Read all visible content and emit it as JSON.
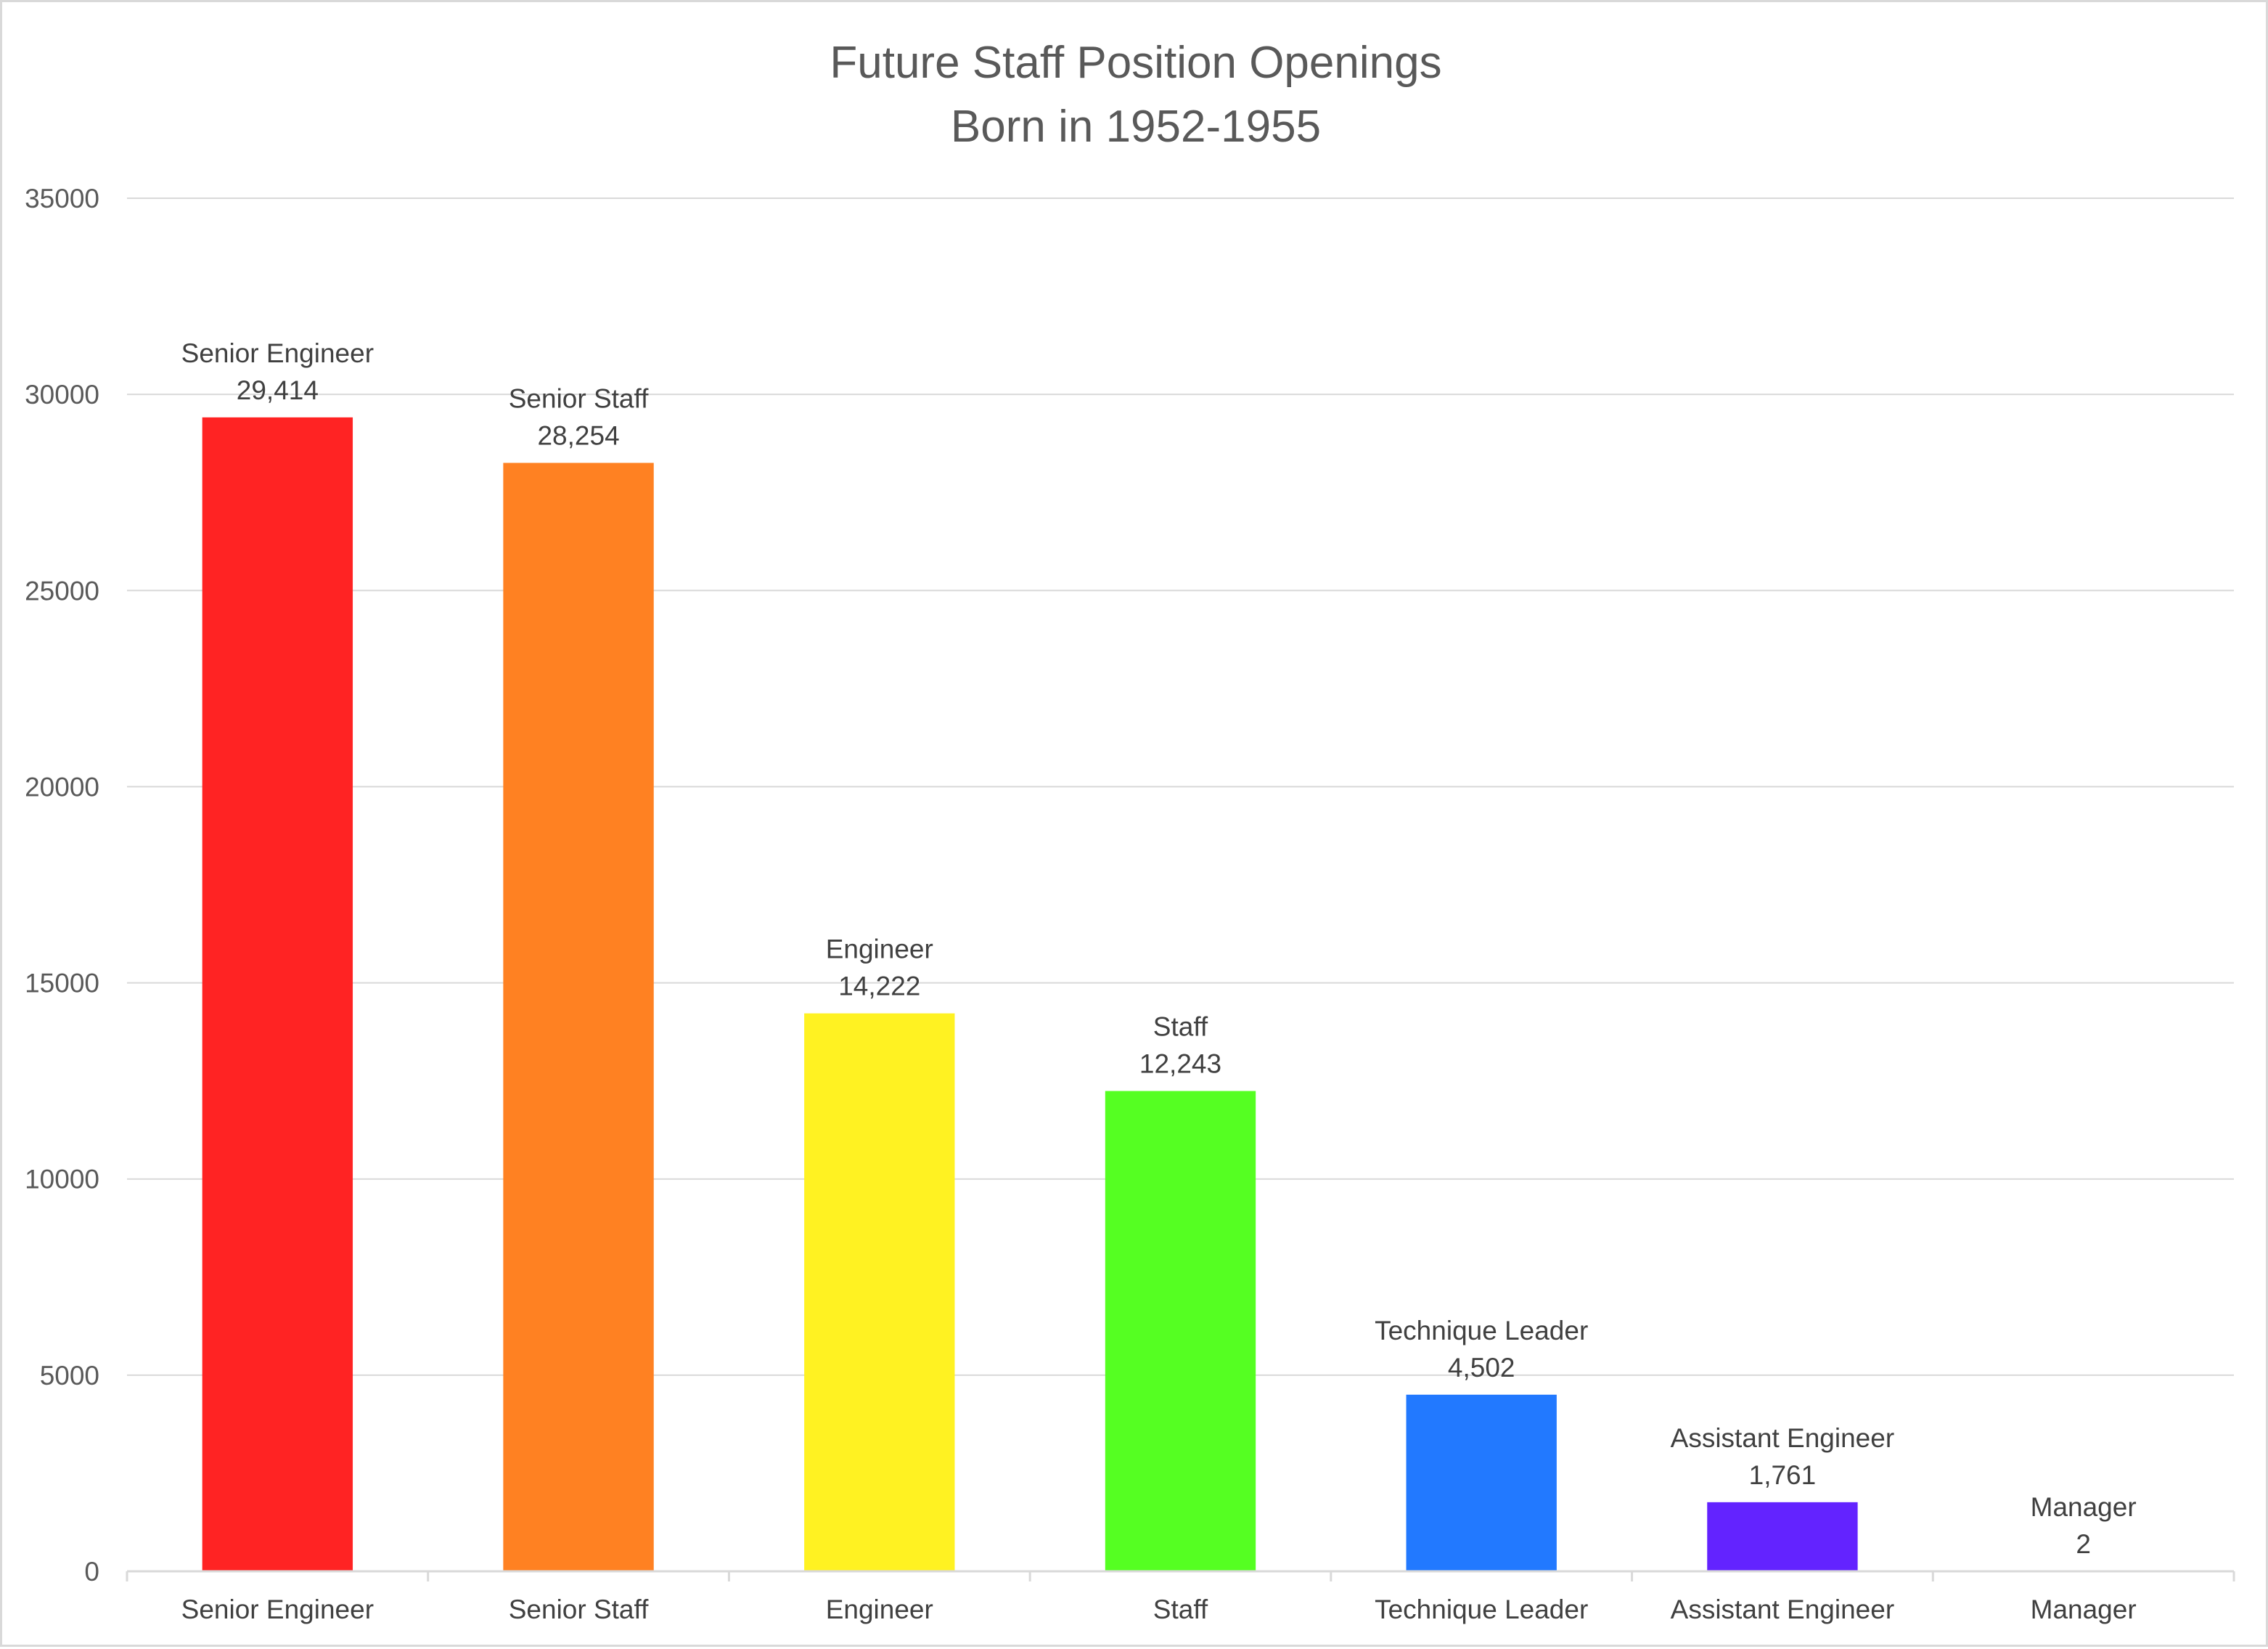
{
  "chart_data": {
    "type": "bar",
    "title": "Future Staff Position Openings",
    "subtitle": "Born in 1952-1955",
    "xlabel": "",
    "ylabel": "",
    "ylim": [
      0,
      35000
    ],
    "yticks": [
      "0",
      "5000",
      "10000",
      "15000",
      "20000",
      "25000",
      "30000",
      "35000"
    ],
    "grid": true,
    "legend": "none",
    "categories": [
      "Senior Engineer",
      "Senior Staff",
      "Engineer",
      "Staff",
      "Technique Leader",
      "Assistant Engineer",
      "Manager"
    ],
    "values": [
      29414,
      28254,
      14222,
      12243,
      4502,
      1761,
      2
    ],
    "data_labels": [
      "29,414",
      "28,254",
      "14,222",
      "12,243",
      "4,502",
      "1,761",
      "2"
    ],
    "colors": [
      "#ff2323",
      "#ff8122",
      "#fff222",
      "#55ff22",
      "#2279ff",
      "#6323ff",
      "#ff23c8"
    ]
  }
}
